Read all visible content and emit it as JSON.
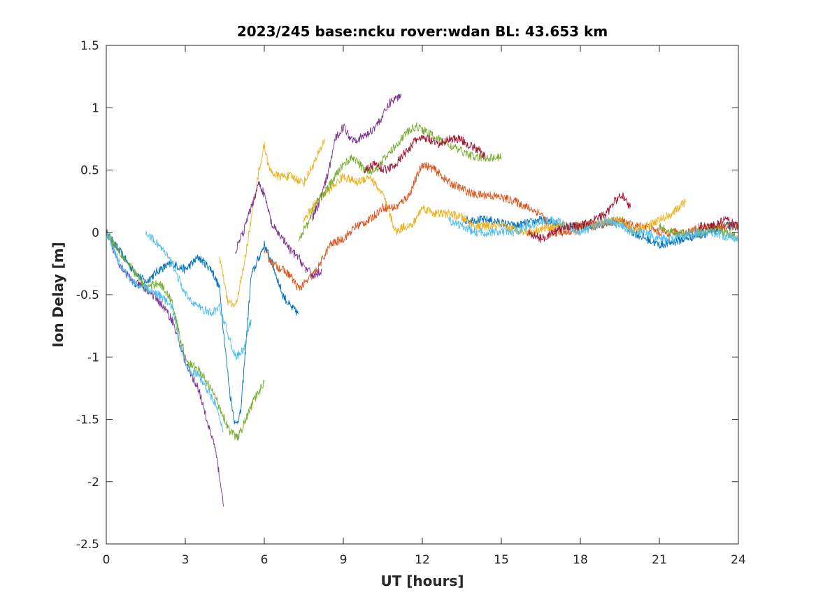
{
  "chart_data": {
    "type": "line",
    "title": "2023/245 base:ncku rover:wdan BL: 43.653 km",
    "xlabel": "UT [hours]",
    "ylabel": "Ion Delay [m]",
    "xlim": [
      0,
      24
    ],
    "ylim": [
      -2.5,
      1.5
    ],
    "xticks": [
      0,
      3,
      6,
      9,
      12,
      15,
      18,
      21,
      24
    ],
    "xtick_labels": [
      "0",
      "3",
      "6",
      "9",
      "12",
      "15",
      "18",
      "21",
      "24"
    ],
    "yticks": [
      -2.5,
      -2,
      -1.5,
      -1,
      -0.5,
      0,
      0.5,
      1,
      1.5
    ],
    "ytick_labels": [
      "-2.5",
      "-2",
      "-1.5",
      "-1",
      "-0.5",
      "0",
      "0.5",
      "1",
      "1.5"
    ],
    "grid": false,
    "series": [
      {
        "color": "#0072bd",
        "x": [
          0,
          0.5,
          1.0,
          1.5,
          2.0,
          2.5,
          3.0,
          3.5,
          4.0,
          4.3,
          4.5,
          4.7,
          4.9,
          5.1,
          5.5,
          6.0,
          6.3,
          6.7,
          7.0,
          7.3
        ],
        "y": [
          0,
          -0.15,
          -0.3,
          -0.4,
          -0.3,
          -0.25,
          -0.3,
          -0.2,
          -0.3,
          -0.45,
          -0.9,
          -1.3,
          -1.55,
          -1.45,
          -0.35,
          -0.1,
          -0.25,
          -0.5,
          -0.6,
          -0.65
        ]
      },
      {
        "color": "#0072bd",
        "x": [
          13.5,
          14.5,
          15.5,
          16.5,
          17.5,
          18.5,
          19.5,
          20.0,
          20.5,
          21.0,
          21.5,
          22.0,
          22.5,
          23.0,
          23.5,
          24.0
        ],
        "y": [
          0.1,
          0.1,
          0.05,
          0.1,
          0.05,
          0.05,
          0.1,
          0.0,
          -0.05,
          -0.1,
          -0.08,
          -0.05,
          -0.02,
          0.0,
          0.05,
          0.05
        ]
      },
      {
        "color": "#d95319",
        "x": [
          6.0,
          6.3,
          6.7,
          7.0,
          7.3,
          7.6,
          8.0,
          8.5,
          9.0,
          9.5,
          10.0,
          10.5,
          11.0,
          11.5,
          12.0,
          12.5,
          13.0,
          13.5,
          14.0,
          14.5,
          15.0,
          15.5,
          16.0,
          16.5,
          17.0,
          17.5,
          18.5,
          19.5,
          20.0,
          20.5,
          21.0,
          22.0,
          23.0,
          24.0
        ],
        "y": [
          -0.15,
          -0.25,
          -0.3,
          -0.35,
          -0.45,
          -0.4,
          -0.3,
          -0.1,
          -0.05,
          0.05,
          0.1,
          0.2,
          0.2,
          0.3,
          0.55,
          0.5,
          0.4,
          0.35,
          0.3,
          0.3,
          0.28,
          0.25,
          0.2,
          0.15,
          0.0,
          0.0,
          0.05,
          0.1,
          0.05,
          0.05,
          0.0,
          0.0,
          0.05,
          0.05
        ]
      },
      {
        "color": "#edb120",
        "x": [
          4.3,
          4.6,
          4.9,
          5.2,
          5.5,
          5.8,
          6.0,
          6.2,
          6.5,
          7.0,
          7.5,
          8.0,
          8.3
        ],
        "y": [
          -0.2,
          -0.55,
          -0.6,
          -0.3,
          0.1,
          0.5,
          0.7,
          0.5,
          0.45,
          0.45,
          0.4,
          0.6,
          0.75
        ]
      },
      {
        "color": "#edb120",
        "x": [
          7.5,
          8.0,
          8.5,
          9.0,
          9.5,
          10.0,
          10.5,
          11.0,
          11.3,
          11.6,
          12.0,
          12.5,
          13.0,
          13.5,
          14.0,
          15.0,
          16.0,
          17.0,
          18.0,
          19.0,
          19.5,
          20.0,
          20.5,
          21.0,
          21.5,
          22.0
        ],
        "y": [
          0.1,
          0.25,
          0.35,
          0.45,
          0.4,
          0.45,
          0.3,
          0.0,
          0.05,
          0.05,
          0.2,
          0.15,
          0.15,
          0.12,
          0.05,
          0.05,
          0.0,
          0.05,
          0.05,
          0.08,
          0.1,
          0.0,
          0.05,
          0.1,
          0.15,
          0.25
        ]
      },
      {
        "color": "#7e2f8e",
        "x": [
          0,
          0.5,
          1.0,
          1.5,
          2.0,
          2.5,
          2.8,
          3.1,
          3.5,
          3.8,
          4.1,
          4.3,
          4.45
        ],
        "y": [
          0,
          -0.25,
          -0.4,
          -0.45,
          -0.55,
          -0.7,
          -0.9,
          -1.1,
          -1.25,
          -1.5,
          -1.7,
          -1.95,
          -2.2
        ]
      },
      {
        "color": "#7e2f8e",
        "x": [
          4.9,
          5.2,
          5.5,
          5.8,
          6.0,
          6.3,
          6.7,
          7.0,
          7.3,
          7.6,
          7.9,
          8.2
        ],
        "y": [
          -0.15,
          0.0,
          0.2,
          0.4,
          0.3,
          0.05,
          -0.05,
          -0.15,
          -0.2,
          -0.3,
          -0.35,
          -0.3
        ]
      },
      {
        "color": "#7e2f8e",
        "x": [
          7.8,
          8.1,
          8.4,
          8.7,
          9.0,
          9.3,
          9.6,
          10.0,
          10.4,
          10.8,
          11.2
        ],
        "y": [
          0.1,
          0.25,
          0.45,
          0.75,
          0.85,
          0.75,
          0.75,
          0.8,
          0.9,
          1.05,
          1.1
        ]
      },
      {
        "color": "#77ac30",
        "x": [
          0,
          0.5,
          1.0,
          1.5,
          2.0,
          2.5,
          2.8,
          3.1,
          3.5,
          3.8,
          4.1,
          4.4,
          4.7,
          5.0,
          5.3,
          5.6,
          6.0
        ],
        "y": [
          0,
          -0.15,
          -0.3,
          -0.45,
          -0.4,
          -0.55,
          -0.85,
          -1.05,
          -1.1,
          -1.2,
          -1.3,
          -1.45,
          -1.6,
          -1.65,
          -1.5,
          -1.35,
          -1.2
        ]
      },
      {
        "color": "#77ac30",
        "x": [
          7.3,
          7.6,
          8.0,
          8.4,
          8.7,
          9.0,
          9.4,
          9.8,
          10.2,
          10.6,
          11.0,
          11.4,
          11.8,
          12.2,
          12.6,
          13.0,
          13.5,
          14.0,
          14.5,
          15.0
        ],
        "y": [
          -0.05,
          0.05,
          0.25,
          0.35,
          0.45,
          0.55,
          0.6,
          0.5,
          0.5,
          0.6,
          0.7,
          0.8,
          0.85,
          0.8,
          0.75,
          0.7,
          0.65,
          0.6,
          0.6,
          0.6
        ]
      },
      {
        "color": "#77ac30",
        "x": [
          21.0,
          21.5,
          22.0,
          22.5,
          23.0,
          23.5,
          24.0
        ],
        "y": [
          0.05,
          0.0,
          -0.02,
          0.0,
          0.03,
          0.0,
          -0.05
        ]
      },
      {
        "color": "#4dbeee",
        "x": [
          0,
          0.5,
          1.0,
          1.5,
          2.0,
          2.5,
          2.8,
          3.1,
          3.5,
          3.8,
          4.1,
          4.3,
          4.45
        ],
        "y": [
          0,
          -0.25,
          -0.4,
          -0.45,
          -0.5,
          -0.6,
          -0.9,
          -1.1,
          -1.15,
          -1.25,
          -1.35,
          -1.5,
          -1.6
        ]
      },
      {
        "color": "#4dbeee",
        "x": [
          1.5,
          2.0,
          2.5,
          3.0,
          3.5,
          4.0,
          4.3,
          4.6,
          4.9,
          5.2,
          5.5
        ],
        "y": [
          0,
          -0.1,
          -0.25,
          -0.5,
          -0.6,
          -0.65,
          -0.6,
          -0.8,
          -1.0,
          -0.95,
          -0.7
        ]
      },
      {
        "color": "#4dbeee",
        "x": [
          13.0,
          13.5,
          14.0,
          14.5,
          15.0,
          15.5,
          16.0,
          16.5,
          17.0,
          17.5,
          18.0,
          18.5,
          19.0,
          19.5,
          20.0,
          20.5,
          21.0,
          21.5,
          22.0,
          22.5,
          23.0,
          23.5,
          24.0
        ],
        "y": [
          0.1,
          0.05,
          0.0,
          0.0,
          0.0,
          0.0,
          0.05,
          0.08,
          0.1,
          0.05,
          0.0,
          0.05,
          0.1,
          0.05,
          0.0,
          0.0,
          -0.05,
          -0.05,
          -0.03,
          0.0,
          0.0,
          -0.03,
          -0.05
        ]
      },
      {
        "color": "#a2142f",
        "x": [
          9.8,
          10.2,
          10.6,
          11.0,
          11.4,
          11.8,
          12.2,
          12.6,
          13.0,
          13.4,
          13.8,
          14.2,
          14.4
        ],
        "y": [
          0.5,
          0.55,
          0.5,
          0.55,
          0.65,
          0.75,
          0.75,
          0.7,
          0.75,
          0.75,
          0.7,
          0.65,
          0.6
        ]
      },
      {
        "color": "#a2142f",
        "x": [
          16.0,
          16.5,
          17.0,
          17.5,
          18.0,
          18.5,
          19.0,
          19.3,
          19.6,
          19.9
        ],
        "y": [
          0.0,
          -0.05,
          0.0,
          0.05,
          0.05,
          0.1,
          0.15,
          0.25,
          0.3,
          0.2
        ]
      },
      {
        "color": "#a2142f",
        "x": [
          22.5,
          23.0,
          23.5,
          24.0
        ],
        "y": [
          0.05,
          0.05,
          0.1,
          0.05
        ]
      }
    ]
  }
}
